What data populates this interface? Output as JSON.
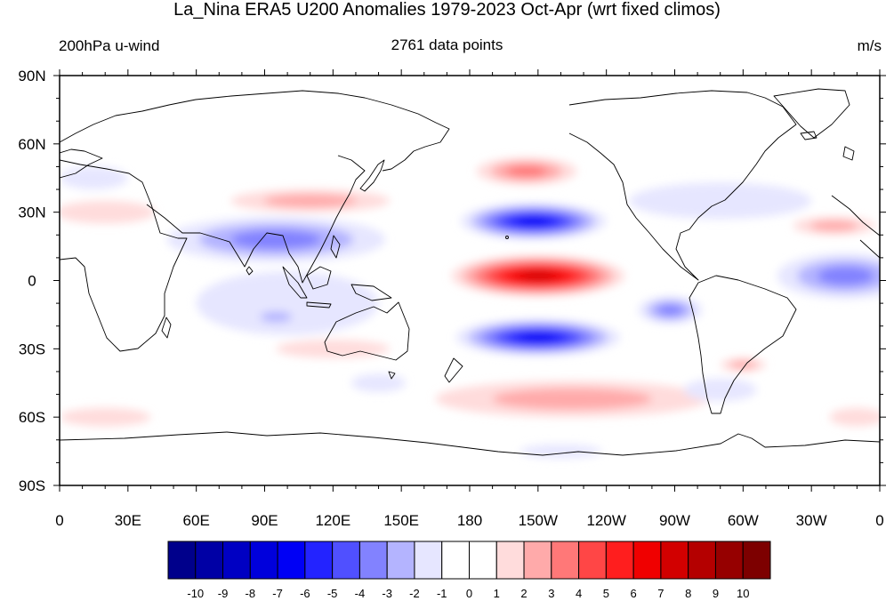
{
  "title": "La_Nina ERA5 U200 Anomalies 1979-2023 Oct-Apr (wrt fixed climos)",
  "left_string": "200hPa u-wind",
  "center_string": "2761 data points",
  "right_string": "m/s",
  "map": {
    "projection": "cylindrical-equidistant",
    "center_lon": 180,
    "lon_range": [
      0,
      360
    ],
    "lat_range": [
      -90,
      90
    ],
    "lon_ticks": [
      {
        "lon": 0,
        "label": "0"
      },
      {
        "lon": 30,
        "label": "30E"
      },
      {
        "lon": 60,
        "label": "60E"
      },
      {
        "lon": 90,
        "label": "90E"
      },
      {
        "lon": 120,
        "label": "120E"
      },
      {
        "lon": 150,
        "label": "150E"
      },
      {
        "lon": 180,
        "label": "180"
      },
      {
        "lon": 210,
        "label": "150W"
      },
      {
        "lon": 240,
        "label": "120W"
      },
      {
        "lon": 270,
        "label": "90W"
      },
      {
        "lon": 300,
        "label": "60W"
      },
      {
        "lon": 330,
        "label": "30W"
      },
      {
        "lon": 360,
        "label": "0"
      }
    ],
    "lat_ticks": [
      {
        "lat": 90,
        "label": "90N"
      },
      {
        "lat": 60,
        "label": "60N"
      },
      {
        "lat": 30,
        "label": "30N"
      },
      {
        "lat": 0,
        "label": "0"
      },
      {
        "lat": -30,
        "label": "30S"
      },
      {
        "lat": -60,
        "label": "60S"
      },
      {
        "lat": -90,
        "label": "90S"
      }
    ],
    "anomaly_centers": [
      {
        "lon": 210,
        "lat": 2,
        "rx": 38,
        "ry": 9,
        "value": 7.5
      },
      {
        "lon": 208,
        "lat": 26,
        "rx": 32,
        "ry": 8,
        "value": -6.5
      },
      {
        "lon": 210,
        "lat": -25,
        "rx": 36,
        "ry": 8,
        "value": -6
      },
      {
        "lon": 205,
        "lat": 48,
        "rx": 22,
        "ry": 6,
        "value": 3.5
      },
      {
        "lon": 225,
        "lat": -52,
        "rx": 60,
        "ry": 8,
        "value": 2.5
      },
      {
        "lon": 110,
        "lat": 35,
        "rx": 35,
        "ry": 5,
        "value": 2.5
      },
      {
        "lon": 95,
        "lat": 18,
        "rx": 48,
        "ry": 10,
        "value": -3
      },
      {
        "lon": 100,
        "lat": -10,
        "rx": 40,
        "ry": 14,
        "value": -1.5
      },
      {
        "lon": 95,
        "lat": -16,
        "rx": 12,
        "ry": 4,
        "value": -2.5
      },
      {
        "lon": 345,
        "lat": 2,
        "rx": 30,
        "ry": 10,
        "value": -3
      },
      {
        "lon": 268,
        "lat": -13,
        "rx": 14,
        "ry": 6,
        "value": -3
      },
      {
        "lon": 340,
        "lat": 24,
        "rx": 18,
        "ry": 4,
        "value": 2.5
      },
      {
        "lon": 20,
        "lat": 30,
        "rx": 22,
        "ry": 5,
        "value": 1.5
      },
      {
        "lon": 290,
        "lat": 35,
        "rx": 40,
        "ry": 8,
        "value": -1
      },
      {
        "lon": 20,
        "lat": -60,
        "rx": 20,
        "ry": 4,
        "value": 1.5
      },
      {
        "lon": 350,
        "lat": -60,
        "rx": 12,
        "ry": 4,
        "value": 1.5
      },
      {
        "lon": 120,
        "lat": -30,
        "rx": 25,
        "ry": 4,
        "value": 1.5
      },
      {
        "lon": 140,
        "lat": -45,
        "rx": 12,
        "ry": 4,
        "value": -1.5
      },
      {
        "lon": 220,
        "lat": -75,
        "rx": 18,
        "ry": 3,
        "value": -1.5
      },
      {
        "lon": 300,
        "lat": -37,
        "rx": 10,
        "ry": 3,
        "value": 2.5
      },
      {
        "lon": 290,
        "lat": -48,
        "rx": 16,
        "ry": 5,
        "value": -1.5
      },
      {
        "lon": 15,
        "lat": 45,
        "rx": 15,
        "ry": 5,
        "value": -1.2
      }
    ]
  },
  "colorbar": {
    "colors": [
      "#00008b",
      "#0000a5",
      "#0000c3",
      "#0000dc",
      "#0000f5",
      "#2323ff",
      "#5050ff",
      "#8282ff",
      "#b4b4ff",
      "#e6e6ff",
      "#ffffff",
      "#ffffff",
      "#ffdcdc",
      "#ffaaaa",
      "#ff7878",
      "#ff4646",
      "#ff1e1e",
      "#f00000",
      "#d20000",
      "#b40000",
      "#960000",
      "#7d0000"
    ],
    "levels": [
      -10,
      -9,
      -8,
      -7,
      -6,
      -5,
      -4,
      -3,
      -2,
      -1,
      0,
      1,
      2,
      3,
      4,
      5,
      6,
      7,
      8,
      9,
      10
    ],
    "labels": [
      "-10",
      "-9",
      "-8",
      "-7",
      "-6",
      "-5",
      "-4",
      "-3",
      "-2",
      "-1",
      "0",
      "1",
      "2",
      "3",
      "4",
      "5",
      "6",
      "7",
      "8",
      "9",
      "10"
    ]
  }
}
